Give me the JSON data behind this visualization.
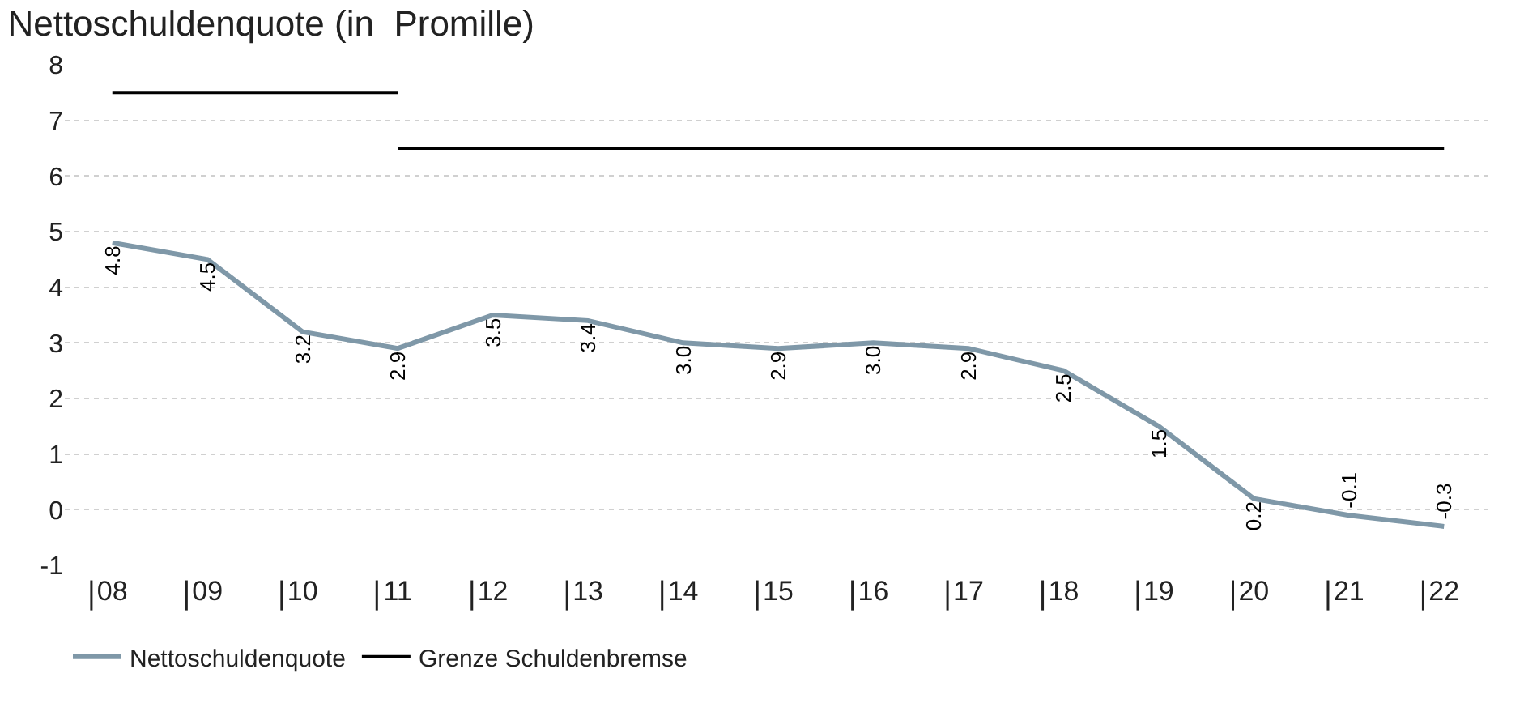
{
  "chart_data": {
    "type": "line",
    "title": "Nettoschuldenquote (in  Promille)",
    "categories": [
      "08",
      "09",
      "10",
      "11",
      "12",
      "13",
      "14",
      "15",
      "16",
      "17",
      "18",
      "19",
      "20",
      "21",
      "22"
    ],
    "series": [
      {
        "name": "Nettoschuldenquote",
        "color": "#7f98a8",
        "values": [
          4.8,
          4.5,
          3.2,
          2.9,
          3.5,
          3.4,
          3.0,
          2.9,
          3.0,
          2.9,
          2.5,
          1.5,
          0.2,
          -0.1,
          -0.3
        ],
        "value_labels": [
          "4.8",
          "4.5",
          "3.2",
          "2.9",
          "3.5",
          "3.4",
          "3.0",
          "2.9",
          "3.0",
          "2.9",
          "2.5",
          "1.5",
          "0.2",
          "-0.1",
          "-0.3"
        ]
      },
      {
        "name": "Grenze Schuldenbremse",
        "color": "#000000",
        "values": [
          7.5,
          7.5,
          7.5,
          7.5,
          null,
          null,
          null,
          null,
          null,
          null,
          null,
          null,
          null,
          null,
          null
        ]
      },
      {
        "color": "#000000",
        "values": [
          null,
          null,
          null,
          6.5,
          6.5,
          6.5,
          6.5,
          6.5,
          6.5,
          6.5,
          6.5,
          6.5,
          6.5,
          6.5,
          6.5
        ]
      }
    ],
    "ylim": [
      -1,
      8
    ],
    "yticks": [
      -1,
      0,
      1,
      2,
      3,
      4,
      5,
      6,
      7,
      8
    ],
    "grid": "y",
    "legend": "bottom left",
    "marker": "none",
    "line_style": "solid"
  }
}
